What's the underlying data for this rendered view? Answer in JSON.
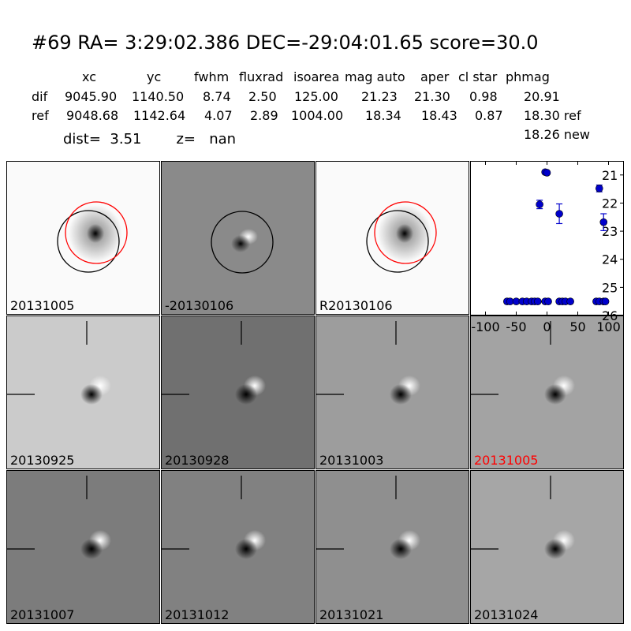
{
  "header": {
    "title": "#69   RA= 3:29:02.386 DEC=-29:04:01.65       score=30.0",
    "columns": [
      "xc",
      "yc",
      "fwhm",
      "fluxrad",
      "isoarea",
      "mag auto",
      "aper",
      "cl star",
      "phmag"
    ],
    "rows": [
      {
        "label": "dif",
        "values": [
          "9045.90",
          "1140.50",
          "8.74",
          "2.50",
          "125.00",
          "21.23",
          "21.30",
          "0.98",
          "20.91"
        ]
      },
      {
        "label": "ref",
        "values": [
          "9048.68",
          "1142.64",
          "4.07",
          "2.89",
          "1004.00",
          "18.34",
          "18.43",
          "0.87",
          "18.30 ref"
        ]
      }
    ],
    "extra": "18.26 new",
    "dist_label": "dist=",
    "dist_value": "3.51",
    "z_label": "z=",
    "z_value": "nan"
  },
  "top_panels": [
    {
      "label": "20131005",
      "bg": "#fafafa",
      "circles": [
        "black",
        "red"
      ]
    },
    {
      "label": "-20130106",
      "bg": "#8a8a8a",
      "circles": [
        "black"
      ]
    },
    {
      "label": "R20130106",
      "bg": "#fafafa",
      "circles": [
        "black",
        "red"
      ]
    }
  ],
  "stamps": [
    {
      "label": "20130925",
      "bg": "#c8c8c8",
      "label_color": "#000000"
    },
    {
      "label": "20130928",
      "bg": "#6e6e6e",
      "label_color": "#000000"
    },
    {
      "label": "20131003",
      "bg": "#9a9a9a",
      "label_color": "#000000"
    },
    {
      "label": "20131005",
      "bg": "#a0a0a0",
      "label_color": "#ff0000"
    },
    {
      "label": "20131007",
      "bg": "#7a7a7a",
      "label_color": "#000000"
    },
    {
      "label": "20131012",
      "bg": "#7e7e7e",
      "label_color": "#000000"
    },
    {
      "label": "20131021",
      "bg": "#8c8c8c",
      "label_color": "#000000"
    },
    {
      "label": "20131024",
      "bg": "#a4a4a4",
      "label_color": "#000000"
    }
  ],
  "chart_data": {
    "type": "scatter",
    "xlim": [
      -125,
      125
    ],
    "ylim": [
      26,
      20.5
    ],
    "y_inverted": true,
    "xticks": [
      -100,
      -50,
      0,
      50,
      100
    ],
    "yticks": [
      21,
      22,
      23,
      24,
      25,
      26
    ],
    "marker_color": "#0000cc",
    "detections": [
      {
        "x": -12,
        "y": 22.05,
        "err": 0.15
      },
      {
        "x": -3,
        "y": 20.9,
        "err": 0.05
      },
      {
        "x": 0,
        "y": 20.92,
        "err": 0.05
      },
      {
        "x": 20,
        "y": 22.38,
        "err": 0.35
      },
      {
        "x": 85,
        "y": 21.48,
        "err": 0.12
      },
      {
        "x": 92,
        "y": 22.68,
        "err": 0.3
      }
    ],
    "limits_x": [
      -65,
      -60,
      -50,
      -40,
      -33,
      -25,
      -20,
      -15,
      -3,
      2,
      20,
      25,
      30,
      38,
      80,
      85,
      92,
      95
    ],
    "limit_y": 25.5
  }
}
